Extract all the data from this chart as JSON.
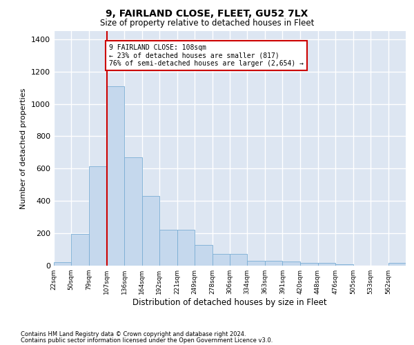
{
  "title": "9, FAIRLAND CLOSE, FLEET, GU52 7LX",
  "subtitle": "Size of property relative to detached houses in Fleet",
  "xlabel": "Distribution of detached houses by size in Fleet",
  "ylabel": "Number of detached properties",
  "footnote1": "Contains HM Land Registry data © Crown copyright and database right 2024.",
  "footnote2": "Contains public sector information licensed under the Open Government Licence v3.0.",
  "annotation_line1": "9 FAIRLAND CLOSE: 108sqm",
  "annotation_line2": "← 23% of detached houses are smaller (817)",
  "annotation_line3": "76% of semi-detached houses are larger (2,654) →",
  "property_size": 108,
  "bar_color": "#c5d8ed",
  "bar_edge_color": "#7aadd4",
  "marker_line_color": "#cc0000",
  "background_color": "#dde6f2",
  "grid_color": "#ffffff",
  "annotation_box_color": "#cc0000",
  "bins": [
    22,
    50,
    79,
    107,
    136,
    164,
    192,
    221,
    249,
    278,
    306,
    334,
    363,
    391,
    420,
    448,
    476,
    505,
    533,
    562,
    590
  ],
  "bar_heights": [
    20,
    195,
    615,
    1110,
    670,
    430,
    220,
    220,
    130,
    72,
    72,
    30,
    30,
    25,
    18,
    15,
    10,
    0,
    0,
    15
  ],
  "ylim": [
    0,
    1450
  ],
  "yticks": [
    0,
    200,
    400,
    600,
    800,
    1000,
    1200,
    1400
  ]
}
